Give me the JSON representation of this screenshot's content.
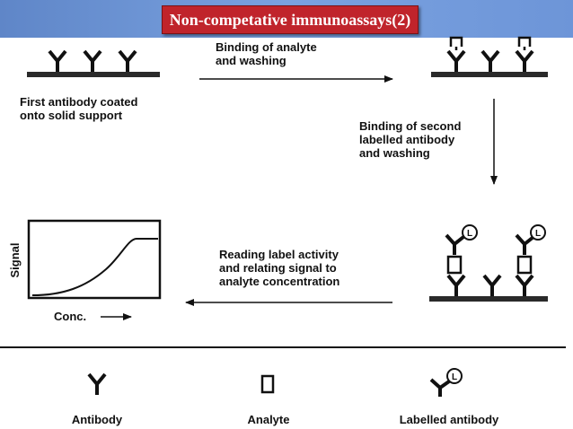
{
  "title": "Non-competative immunoassays(2)",
  "steps": {
    "coated": "First antibody coated\nonto solid support",
    "binding_analyte": "Binding of analyte\nand washing",
    "binding_second": "Binding of second\nlabelled antibody\nand washing",
    "reading": "Reading label activity\nand relating signal to\nanalyte concentration"
  },
  "plot": {
    "ylabel": "Signal",
    "xlabel": "Conc."
  },
  "legend": {
    "antibody": "Antibody",
    "analyte": "Analyte",
    "labelled_antibody": "Labelled antibody",
    "label_letter": "L"
  }
}
